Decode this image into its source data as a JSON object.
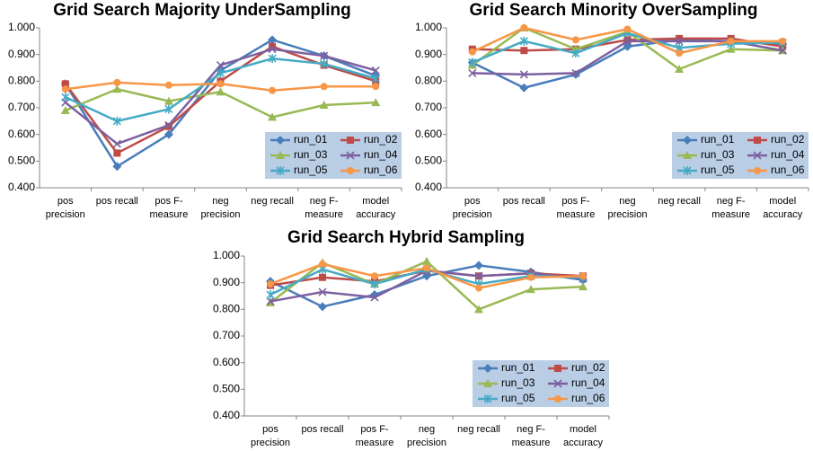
{
  "chart_data": [
    {
      "type": "line",
      "title": "Grid Search Majority UnderSampling",
      "categories": [
        "pos precision",
        "pos recall",
        "pos F-measure",
        "neg precision",
        "neg recall",
        "neg F-measure",
        "model accuracy"
      ],
      "ylim": [
        0.4,
        1.0
      ],
      "yticks": [
        {
          "value": 0.4,
          "label": "0.400"
        },
        {
          "value": 0.5,
          "label": "0.500"
        },
        {
          "value": 0.6,
          "label": "0.600"
        },
        {
          "value": 0.7,
          "label": "0.700"
        },
        {
          "value": 0.8,
          "label": "0.800"
        },
        {
          "value": 0.9,
          "label": "0.900"
        },
        {
          "value": 1.0,
          "label": "1.000"
        }
      ],
      "grid": false,
      "legend": "lower right",
      "series": [
        {
          "name": "run_01",
          "color": "#4a7ebb",
          "marker": "diamond",
          "values": [
            0.79,
            0.48,
            0.6,
            0.84,
            0.955,
            0.895,
            0.82
          ]
        },
        {
          "name": "run_02",
          "color": "#be4b48",
          "marker": "square",
          "values": [
            0.79,
            0.53,
            0.63,
            0.8,
            0.93,
            0.86,
            0.8
          ]
        },
        {
          "name": "run_03",
          "color": "#98b954",
          "marker": "triangle",
          "values": [
            0.69,
            0.77,
            0.725,
            0.76,
            0.665,
            0.71,
            0.72
          ]
        },
        {
          "name": "run_04",
          "color": "#7d60a0",
          "marker": "x",
          "values": [
            0.72,
            0.565,
            0.635,
            0.86,
            0.92,
            0.895,
            0.84
          ]
        },
        {
          "name": "run_05",
          "color": "#46aac5",
          "marker": "star",
          "values": [
            0.74,
            0.65,
            0.695,
            0.83,
            0.885,
            0.865,
            0.81
          ]
        },
        {
          "name": "run_06",
          "color": "#f79646",
          "marker": "circle",
          "values": [
            0.77,
            0.795,
            0.785,
            0.79,
            0.765,
            0.78,
            0.78
          ]
        }
      ]
    },
    {
      "type": "line",
      "title": "Grid Search Minority OverSampling",
      "categories": [
        "pos precision",
        "pos recall",
        "pos F-measure",
        "neg precision",
        "neg recall",
        "neg F-measure",
        "model accuracy"
      ],
      "ylim": [
        0.4,
        1.0
      ],
      "yticks": [
        {
          "value": 0.4,
          "label": "0.400"
        },
        {
          "value": 0.5,
          "label": "0.500"
        },
        {
          "value": 0.6,
          "label": "0.600"
        },
        {
          "value": 0.7,
          "label": "0.700"
        },
        {
          "value": 0.8,
          "label": "0.800"
        },
        {
          "value": 0.9,
          "label": "0.900"
        },
        {
          "value": 1.0,
          "label": "1.000"
        }
      ],
      "grid": false,
      "legend": "lower right",
      "series": [
        {
          "name": "run_01",
          "color": "#4a7ebb",
          "marker": "diamond",
          "values": [
            0.87,
            0.775,
            0.825,
            0.93,
            0.955,
            0.95,
            0.94
          ]
        },
        {
          "name": "run_02",
          "color": "#be4b48",
          "marker": "square",
          "values": [
            0.92,
            0.915,
            0.92,
            0.955,
            0.96,
            0.96,
            0.93
          ]
        },
        {
          "name": "run_03",
          "color": "#98b954",
          "marker": "triangle",
          "values": [
            0.86,
            1.0,
            0.92,
            0.985,
            0.845,
            0.92,
            0.915
          ]
        },
        {
          "name": "run_04",
          "color": "#7d60a0",
          "marker": "x",
          "values": [
            0.83,
            0.825,
            0.83,
            0.95,
            0.95,
            0.95,
            0.915
          ]
        },
        {
          "name": "run_05",
          "color": "#46aac5",
          "marker": "star",
          "values": [
            0.87,
            0.95,
            0.905,
            0.98,
            0.925,
            0.94,
            0.945
          ]
        },
        {
          "name": "run_06",
          "color": "#f79646",
          "marker": "circle",
          "values": [
            0.91,
            1.0,
            0.955,
            0.995,
            0.905,
            0.95,
            0.95
          ]
        }
      ]
    },
    {
      "type": "line",
      "title": "Grid Search Hybrid Sampling",
      "categories": [
        "pos precision",
        "pos recall",
        "pos F-measure",
        "neg precision",
        "neg recall",
        "neg F-measure",
        "model accuracy"
      ],
      "ylim": [
        0.4,
        1.0
      ],
      "yticks": [
        {
          "value": 0.4,
          "label": "0.400"
        },
        {
          "value": 0.5,
          "label": "0.500"
        },
        {
          "value": 0.6,
          "label": "0.600"
        },
        {
          "value": 0.7,
          "label": "0.700"
        },
        {
          "value": 0.8,
          "label": "0.800"
        },
        {
          "value": 0.9,
          "label": "0.900"
        },
        {
          "value": 1.0,
          "label": "1.000"
        }
      ],
      "grid": false,
      "legend": "lower right",
      "series": [
        {
          "name": "run_01",
          "color": "#4a7ebb",
          "marker": "diamond",
          "values": [
            0.905,
            0.81,
            0.855,
            0.925,
            0.965,
            0.94,
            0.91
          ]
        },
        {
          "name": "run_02",
          "color": "#be4b48",
          "marker": "square",
          "values": [
            0.89,
            0.92,
            0.905,
            0.945,
            0.925,
            0.935,
            0.925
          ]
        },
        {
          "name": "run_03",
          "color": "#98b954",
          "marker": "triangle",
          "values": [
            0.825,
            0.975,
            0.895,
            0.98,
            0.8,
            0.875,
            0.885
          ]
        },
        {
          "name": "run_04",
          "color": "#7d60a0",
          "marker": "x",
          "values": [
            0.83,
            0.865,
            0.845,
            0.945,
            0.925,
            0.935,
            0.915
          ]
        },
        {
          "name": "run_05",
          "color": "#46aac5",
          "marker": "star",
          "values": [
            0.855,
            0.95,
            0.895,
            0.95,
            0.895,
            0.925,
            0.92
          ]
        },
        {
          "name": "run_06",
          "color": "#f79646",
          "marker": "circle",
          "values": [
            0.895,
            0.97,
            0.925,
            0.955,
            0.88,
            0.92,
            0.925
          ]
        }
      ]
    }
  ]
}
